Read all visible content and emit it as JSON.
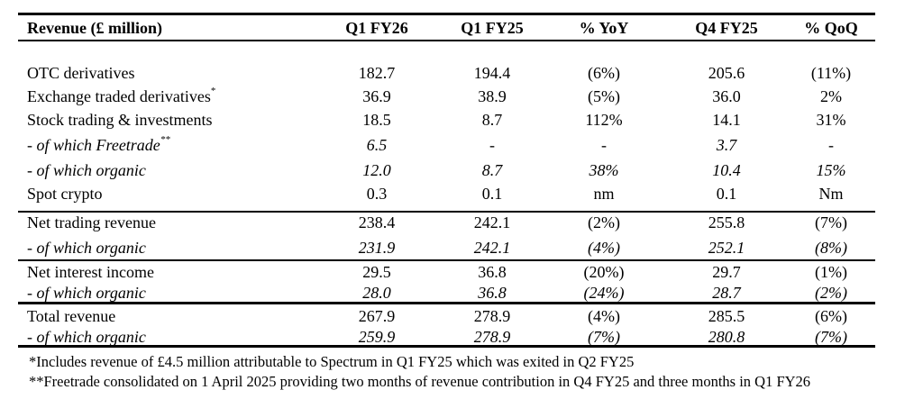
{
  "header": {
    "label": "Revenue (£ million)",
    "cols": [
      "Q1 FY26",
      "Q1 FY25",
      "% YoY",
      "Q4 FY25",
      "% QoQ"
    ]
  },
  "rows": [
    {
      "label": "OTC derivatives",
      "sup": "",
      "italic": false,
      "values": [
        "182.7",
        "194.4",
        "(6%)",
        "205.6",
        "(11%)"
      ]
    },
    {
      "label": "Exchange traded derivatives",
      "sup": "*",
      "italic": false,
      "values": [
        "36.9",
        "38.9",
        "(5%)",
        "36.0",
        "2%"
      ]
    },
    {
      "label": "Stock trading & investments",
      "sup": "",
      "italic": false,
      "values": [
        "18.5",
        "8.7",
        "112%",
        "14.1",
        "31%"
      ]
    },
    {
      "label": "- of which Freetrade",
      "sup": "**",
      "italic": true,
      "values": [
        "6.5",
        "-",
        "-",
        "3.7",
        "-"
      ]
    },
    {
      "label": "- of which organic",
      "sup": "",
      "italic": true,
      "values": [
        "12.0",
        "8.7",
        "38%",
        "10.4",
        "15%"
      ]
    },
    {
      "label": "Spot crypto",
      "sup": "",
      "italic": false,
      "values": [
        "0.3",
        "0.1",
        "nm",
        "0.1",
        "Nm"
      ]
    },
    {
      "label": "Net trading revenue",
      "sup": "",
      "italic": false,
      "values": [
        "238.4",
        "242.1",
        "(2%)",
        "255.8",
        "(7%)"
      ]
    },
    {
      "label": "- of which organic",
      "sup": "",
      "italic": true,
      "values": [
        "231.9",
        "242.1",
        "(4%)",
        "252.1",
        "(8%)"
      ]
    },
    {
      "label": "Net interest income",
      "sup": "",
      "italic": false,
      "values": [
        "29.5",
        "36.8",
        "(20%)",
        "29.7",
        "(1%)"
      ]
    },
    {
      "label": "- of which organic",
      "sup": "",
      "italic": true,
      "values": [
        "28.0",
        "36.8",
        "(24%)",
        "28.7",
        "(2%)"
      ]
    },
    {
      "label": "Total revenue",
      "sup": "",
      "italic": false,
      "values": [
        "267.9",
        "278.9",
        "(4%)",
        "285.5",
        "(6%)"
      ]
    },
    {
      "label": "- of which organic",
      "sup": "",
      "italic": true,
      "values": [
        "259.9",
        "278.9",
        "(7%)",
        "280.8",
        "(7%)"
      ]
    }
  ],
  "footnotes": [
    "*Includes revenue of £4.5 million attributable to Spectrum in Q1 FY25 which was exited in Q2 FY25",
    "**Freetrade consolidated on 1 April 2025 providing two months of revenue contribution in Q4 FY25 and three months in Q1 FY26"
  ]
}
